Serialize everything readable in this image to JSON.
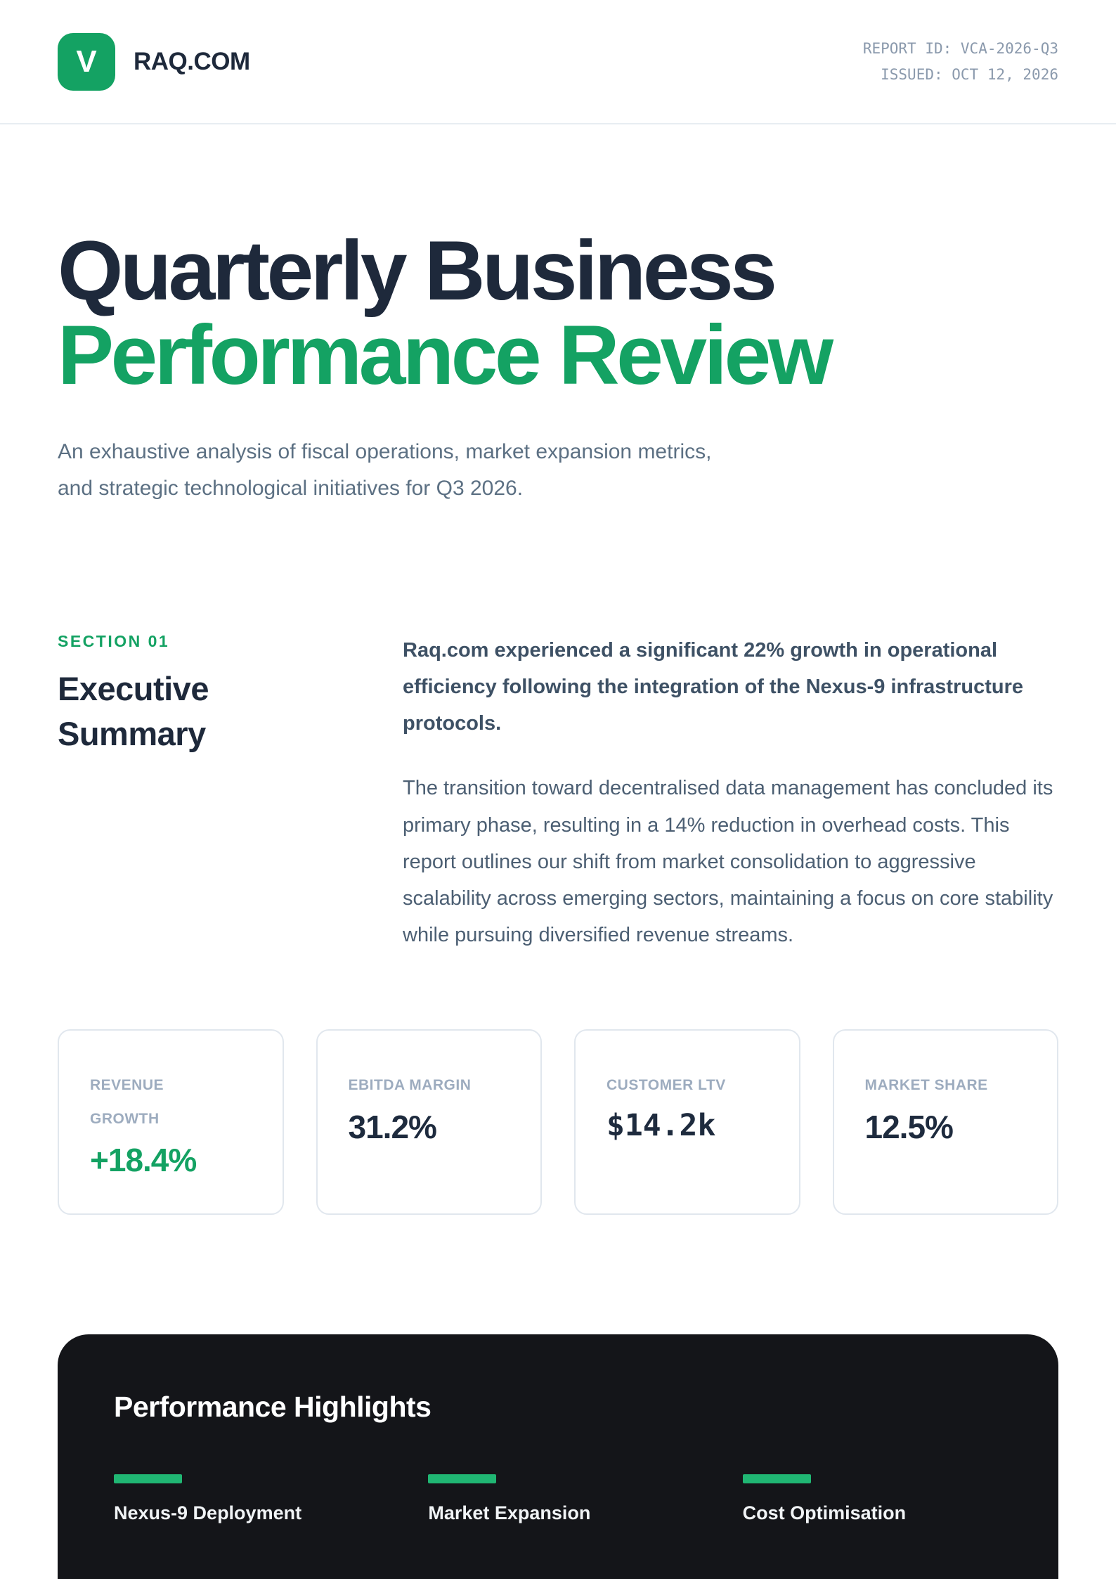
{
  "header": {
    "logo_letter": "V",
    "brand": "RAQ.COM",
    "report_id": "REPORT ID: VCA-2026-Q3",
    "issued": "ISSUED: OCT 12, 2026"
  },
  "hero": {
    "title_line1": "Quarterly Business",
    "title_line2": "Performance Review",
    "subtitle": "An exhaustive analysis of fiscal operations, market expansion metrics, and strategic technological initiatives for Q3 2026."
  },
  "section": {
    "eyebrow": "SECTION 01",
    "heading": "Executive Summary",
    "lead": "Raq.com experienced a significant 22% growth in operational efficiency following the integration of the Nexus-9 infrastructure protocols.",
    "body": "The transition toward decentralised data management has concluded its primary phase, resulting in a 14% reduction in overhead costs. This report outlines our shift from market consolidation to aggressive scalability across emerging sectors, maintaining a focus on core stability while pursuing diversified revenue streams."
  },
  "metrics": [
    {
      "label": "REVENUE GROWTH",
      "value": "+18.4%"
    },
    {
      "label": "EBITDA MARGIN",
      "value": "31.2%"
    },
    {
      "label": "CUSTOMER LTV",
      "value": "$14.2k"
    },
    {
      "label": "MARKET SHARE",
      "value": "12.5%"
    }
  ],
  "highlights": {
    "title": "Performance Highlights",
    "items": [
      {
        "heading": "Nexus-9 Deployment"
      },
      {
        "heading": "Market Expansion"
      },
      {
        "heading": "Cost Optimisation"
      }
    ]
  },
  "colors": {
    "brand_green": "#14A263",
    "bar_green": "#20B673",
    "navy": "#1E293B",
    "dark_panel": "#141519"
  }
}
